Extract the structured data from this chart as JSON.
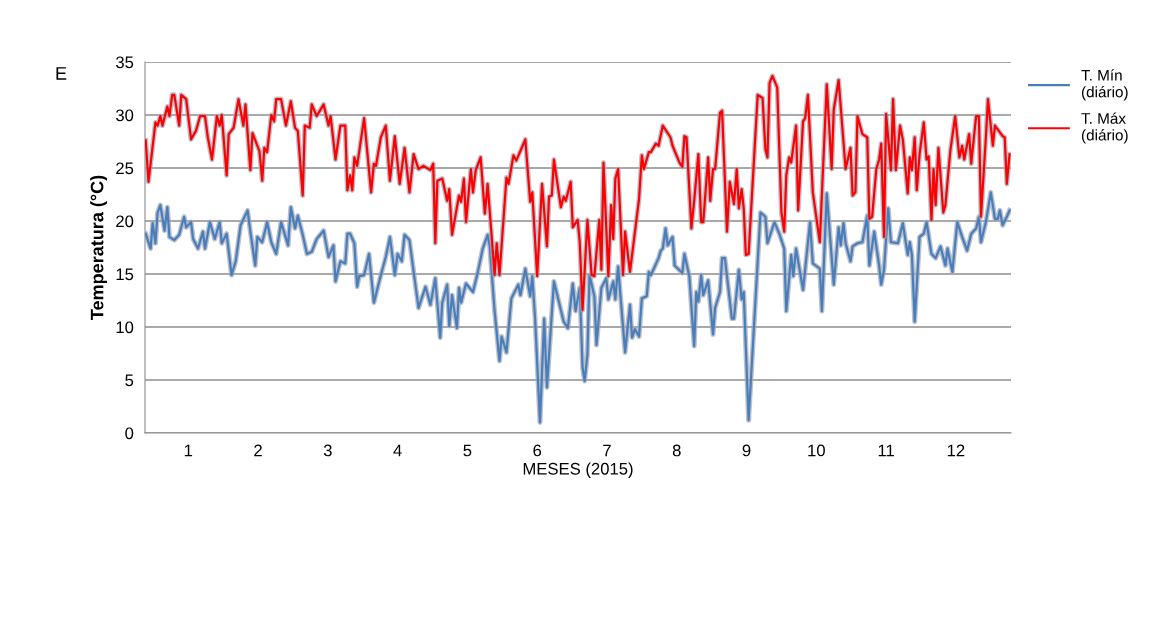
{
  "chart_data": {
    "type": "line",
    "xlabel": "MESES (2015)",
    "ylabel": "Temperatura (°C)",
    "annotations": [
      "E"
    ],
    "xlim": [
      0.38,
      12.79
    ],
    "ylim": [
      0,
      35
    ],
    "yticks": [
      0,
      5,
      10,
      15,
      20,
      25,
      30,
      35
    ],
    "xticks": [
      1,
      2,
      3,
      4,
      5,
      6,
      7,
      8,
      9,
      10,
      11,
      12
    ],
    "grid": "y",
    "legend": "right",
    "marker": "none",
    "line_style": "solid",
    "series": [
      {
        "name": "T. Mín\n(diário)",
        "color": "#4a7ebb",
        "x": [
          0.39,
          0.46,
          0.49,
          0.53,
          0.56,
          0.6,
          0.66,
          0.7,
          0.73,
          0.8,
          0.87,
          0.94,
          0.97,
          1.04,
          1.07,
          1.14,
          1.21,
          1.24,
          1.31,
          1.38,
          1.45,
          1.48,
          1.55,
          1.62,
          1.68,
          1.75,
          1.85,
          1.89,
          1.96,
          1.99,
          2.06,
          2.13,
          2.19,
          2.26,
          2.33,
          2.43,
          2.47,
          2.53,
          2.57,
          2.64,
          2.7,
          2.77,
          2.84,
          2.94,
          3.01,
          3.08,
          3.11,
          3.18,
          3.25,
          3.28,
          3.32,
          3.38,
          3.42,
          3.45,
          3.52,
          3.59,
          3.66,
          3.76,
          3.83,
          3.89,
          3.96,
          4.0,
          4.06,
          4.1,
          4.17,
          4.23,
          4.3,
          4.4,
          4.47,
          4.54,
          4.61,
          4.64,
          4.71,
          4.74,
          4.78,
          4.85,
          4.88,
          4.91,
          4.98,
          5.08,
          5.15,
          5.22,
          5.29,
          5.32,
          5.39,
          5.46,
          5.49,
          5.56,
          5.63,
          5.73,
          5.76,
          5.83,
          5.9,
          5.93,
          5.97,
          6.04,
          6.1,
          6.14,
          6.24,
          6.31,
          6.38,
          6.44,
          6.51,
          6.55,
          6.61,
          6.65,
          6.68,
          6.72,
          6.75,
          6.82,
          6.85,
          6.92,
          6.99,
          7.02,
          7.09,
          7.12,
          7.16,
          7.26,
          7.33,
          7.36,
          7.4,
          7.46,
          7.5,
          7.57,
          7.6,
          7.63,
          7.74,
          7.77,
          7.8,
          7.84,
          7.87,
          7.94,
          7.97,
          8.08,
          8.11,
          8.18,
          8.25,
          8.28,
          8.31,
          8.35,
          8.38,
          8.45,
          8.52,
          8.55,
          8.62,
          8.65,
          8.69,
          8.79,
          8.82,
          8.89,
          8.93,
          8.96,
          9.03,
          9.2,
          9.27,
          9.3,
          9.4,
          9.47,
          9.54,
          9.57,
          9.64,
          9.67,
          9.71,
          9.81,
          9.91,
          9.95,
          10.05,
          10.08,
          10.15,
          10.25,
          10.32,
          10.35,
          10.39,
          10.42,
          10.49,
          10.52,
          10.59,
          10.66,
          10.73,
          10.76,
          10.83,
          10.9,
          10.93,
          10.97,
          11.03,
          11.07,
          11.17,
          11.24,
          11.31,
          11.34,
          11.37,
          11.41,
          11.48,
          11.54,
          11.58,
          11.65,
          11.71,
          11.78,
          11.85,
          11.88,
          11.95,
          12.02,
          12.09,
          12.16,
          12.22,
          12.29,
          12.33,
          12.36,
          12.43,
          12.5,
          12.56,
          12.6,
          12.63,
          12.67,
          12.73,
          12.77
        ],
        "values": [
          18.8,
          17.4,
          19.8,
          17.9,
          20.8,
          21.5,
          19.1,
          21.3,
          18.5,
          18.2,
          18.7,
          20.4,
          19.4,
          19.9,
          18.3,
          17.4,
          19,
          17.4,
          19.9,
          18.3,
          19.9,
          17.9,
          18.8,
          14.9,
          16.2,
          19.6,
          21,
          19,
          15.8,
          18.5,
          18,
          19.9,
          18,
          16.9,
          19.9,
          17.7,
          21.3,
          19.3,
          20.5,
          18.7,
          16.9,
          17.1,
          18.3,
          19.1,
          16.6,
          17.7,
          14.3,
          16.2,
          16,
          18.8,
          18.8,
          17.9,
          13.8,
          14.8,
          14.9,
          16.9,
          12.3,
          14.9,
          16.6,
          18.5,
          14.9,
          16.9,
          16.2,
          18.7,
          18.2,
          15.2,
          11.8,
          13.8,
          12.1,
          14.6,
          9,
          12.3,
          14,
          10.1,
          13,
          9.9,
          13.7,
          12.3,
          14.1,
          13.3,
          15.2,
          17.4,
          18.7,
          17.6,
          11.5,
          6.8,
          9.1,
          7.6,
          12.7,
          14,
          13,
          15.5,
          12.9,
          14.8,
          10.8,
          1,
          10.8,
          4.3,
          14.3,
          12.4,
          10.5,
          9.9,
          14.1,
          11.5,
          13.7,
          6.2,
          4.9,
          7.4,
          14.9,
          12.9,
          8.3,
          13.7,
          14.6,
          12.6,
          14.3,
          12.6,
          15.7,
          7.6,
          12.1,
          9,
          9.8,
          9.1,
          12.7,
          12.9,
          15.2,
          14.9,
          16.5,
          17.2,
          17.4,
          19.3,
          17.7,
          18.5,
          15.8,
          15.1,
          16.9,
          14.8,
          8.2,
          13.3,
          12.4,
          14.9,
          13,
          14.4,
          9.3,
          11.8,
          13.3,
          16.5,
          16.5,
          10.8,
          10.8,
          15.4,
          12.6,
          13.3,
          1.2,
          20.8,
          20.4,
          17.9,
          19.9,
          18.8,
          17.4,
          11.5,
          16.8,
          14.8,
          17.4,
          13.5,
          19.9,
          16,
          15.5,
          11.5,
          22.6,
          14,
          19.4,
          17.7,
          19.8,
          17.9,
          16.2,
          17.6,
          17.9,
          18,
          20.5,
          15.8,
          19,
          15.8,
          14,
          15.4,
          21.2,
          18,
          17.9,
          19.8,
          16.8,
          18,
          16.8,
          10.5,
          18.5,
          18.8,
          19.9,
          16.9,
          16.5,
          17.6,
          15.8,
          17.4,
          15.2,
          19.9,
          18.5,
          17.2,
          18.8,
          19.3,
          20.4,
          18,
          19.9,
          22.7,
          20.2,
          20.2,
          21,
          19.6,
          20.4,
          21
        ]
      },
      {
        "name": "T. Máx\n(diário)",
        "color": "#ff0000",
        "x": [
          0.39,
          0.43,
          0.53,
          0.56,
          0.6,
          0.63,
          0.7,
          0.73,
          0.77,
          0.8,
          0.87,
          0.9,
          0.97,
          1.04,
          1.11,
          1.17,
          1.24,
          1.28,
          1.34,
          1.41,
          1.45,
          1.48,
          1.55,
          1.58,
          1.65,
          1.72,
          1.79,
          1.82,
          1.89,
          1.92,
          2.02,
          2.06,
          2.09,
          2.13,
          2.19,
          2.23,
          2.26,
          2.33,
          2.4,
          2.47,
          2.53,
          2.57,
          2.64,
          2.67,
          2.74,
          2.77,
          2.84,
          2.94,
          3.01,
          3.04,
          3.11,
          3.18,
          3.25,
          3.28,
          3.32,
          3.35,
          3.38,
          3.42,
          3.52,
          3.62,
          3.66,
          3.69,
          3.76,
          3.83,
          3.89,
          3.96,
          4.03,
          4.1,
          4.17,
          4.23,
          4.3,
          4.37,
          4.47,
          4.51,
          4.54,
          4.57,
          4.64,
          4.71,
          4.74,
          4.78,
          4.88,
          4.91,
          4.95,
          4.98,
          5.05,
          5.08,
          5.12,
          5.19,
          5.25,
          5.29,
          5.39,
          5.42,
          5.46,
          5.56,
          5.59,
          5.66,
          5.7,
          5.76,
          5.83,
          5.9,
          5.93,
          6.0,
          6.07,
          6.14,
          6.17,
          6.21,
          6.24,
          6.34,
          6.38,
          6.41,
          6.48,
          6.51,
          6.58,
          6.61,
          6.65,
          6.72,
          6.78,
          6.82,
          6.89,
          6.92,
          6.95,
          7.02,
          7.06,
          7.09,
          7.12,
          7.16,
          7.23,
          7.26,
          7.33,
          7.46,
          7.5,
          7.53,
          7.6,
          7.63,
          7.7,
          7.74,
          7.8,
          7.91,
          7.94,
          8.04,
          8.08,
          8.11,
          8.14,
          8.21,
          8.25,
          8.31,
          8.35,
          8.38,
          8.45,
          8.48,
          8.52,
          8.55,
          8.62,
          8.65,
          8.72,
          8.76,
          8.82,
          8.86,
          8.89,
          8.93,
          8.96,
          8.99,
          9.03,
          9.16,
          9.23,
          9.27,
          9.3,
          9.33,
          9.37,
          9.44,
          9.5,
          9.54,
          9.57,
          9.61,
          9.64,
          9.71,
          9.74,
          9.81,
          9.84,
          9.88,
          9.95,
          10.05,
          10.15,
          10.22,
          10.25,
          10.32,
          10.42,
          10.49,
          10.52,
          10.56,
          10.59,
          10.66,
          10.73,
          10.76,
          10.8,
          10.86,
          10.9,
          10.93,
          10.97,
          11.0,
          11.07,
          11.1,
          11.14,
          11.2,
          11.24,
          11.31,
          11.34,
          11.37,
          11.41,
          11.44,
          11.48,
          11.54,
          11.58,
          11.61,
          11.65,
          11.68,
          11.71,
          11.75,
          11.82,
          11.85,
          11.92,
          11.99,
          12.05,
          12.09,
          12.12,
          12.19,
          12.22,
          12.29,
          12.33,
          12.36,
          12.43,
          12.46,
          12.53,
          12.56,
          12.67,
          12.7,
          12.73,
          12.77
        ],
        "values": [
          27.6,
          23.7,
          29.3,
          29,
          29.9,
          29,
          30.8,
          29.9,
          31.9,
          31.9,
          29,
          31.9,
          31.5,
          27.7,
          28.5,
          29.9,
          29.9,
          27.9,
          25.8,
          29.9,
          29,
          30,
          24.3,
          28.2,
          28.8,
          31.5,
          29,
          31,
          24.8,
          28.3,
          26.6,
          23.8,
          26.9,
          26.5,
          30,
          29.4,
          31.5,
          31.5,
          29,
          31.3,
          28.8,
          28.5,
          22.4,
          29,
          28.8,
          31,
          29.9,
          31,
          29,
          29.9,
          25.8,
          29,
          29,
          22.9,
          24.3,
          22.9,
          26,
          25.2,
          29.7,
          22.7,
          25.4,
          25.2,
          27.9,
          29,
          23.8,
          28,
          23.5,
          26.9,
          22.7,
          26.3,
          24.9,
          25.2,
          24.8,
          25.4,
          17.9,
          23.8,
          24,
          21.9,
          23,
          18.7,
          22.4,
          21.8,
          24,
          19.9,
          24.9,
          22.7,
          24.8,
          26,
          20.7,
          23.5,
          14.9,
          17.9,
          14.9,
          24.1,
          23.5,
          26.2,
          25.7,
          26.6,
          27.7,
          21.8,
          22.7,
          14.8,
          23.5,
          17.6,
          22.3,
          22.4,
          25.8,
          21.3,
          22.3,
          21.9,
          23.7,
          19.4,
          20.1,
          18,
          11.6,
          20.1,
          14.9,
          14.8,
          20.1,
          15.4,
          25.5,
          14.8,
          21.5,
          18.3,
          24,
          24.9,
          14.9,
          19,
          15.2,
          22.1,
          26.2,
          24.9,
          26.5,
          26.5,
          27.3,
          27.1,
          29,
          27.9,
          27.1,
          25.5,
          25.1,
          28,
          27.9,
          19.3,
          21.9,
          26.3,
          19.9,
          19.9,
          26,
          21.9,
          24.9,
          24.9,
          30.2,
          30.4,
          19,
          23.7,
          21.6,
          24.9,
          21.2,
          23,
          21.2,
          16.8,
          16.9,
          31.9,
          31.6,
          26.8,
          26,
          33,
          33.7,
          32.6,
          20.8,
          19,
          24.3,
          26,
          25.5,
          29,
          21,
          29.4,
          29.7,
          31.9,
          22.7,
          18,
          32.9,
          24.9,
          30.5,
          33.3,
          24.9,
          26.9,
          22.4,
          22.7,
          29.9,
          28.2,
          27.9,
          20.2,
          20.4,
          24.9,
          25.8,
          27.3,
          18.5,
          30.1,
          24.8,
          31.5,
          24.8,
          29,
          27.7,
          22.6,
          26,
          24.8,
          27.9,
          22.9,
          26.3,
          29.3,
          25.8,
          26.1,
          20.1,
          24.9,
          21.5,
          26.9,
          20.8,
          21.5,
          26.6,
          29.9,
          26,
          27.1,
          25.8,
          28.2,
          25.4,
          29.9,
          29.9,
          20.4,
          27.9,
          31.5,
          27.1,
          29,
          28,
          27.9,
          23.5,
          26.3
        ]
      }
    ]
  }
}
